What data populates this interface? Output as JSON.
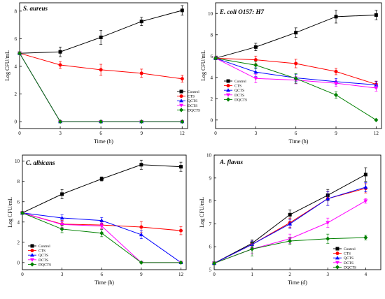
{
  "figure": {
    "caption": ""
  },
  "chart_data": [
    {
      "id": "s_aureus",
      "type": "line",
      "title": "S. aureus",
      "xlabel": "Time (h)",
      "ylabel": "Log CFU/mL",
      "x": [
        0,
        3,
        6,
        9,
        12
      ],
      "xlim": [
        0,
        12.4
      ],
      "ylim": [
        -0.5,
        8.6
      ],
      "xticks": [
        0,
        3,
        6,
        9,
        12
      ],
      "yticks": [
        0,
        2,
        4,
        6,
        8
      ],
      "grid": false,
      "legend_position": "right",
      "series": [
        {
          "name": "Control",
          "color": "#000000",
          "marker": "square",
          "values": [
            4.95,
            5.05,
            6.1,
            7.25,
            8.05
          ],
          "errors": [
            0.0,
            0.35,
            0.5,
            0.3,
            0.35
          ]
        },
        {
          "name": "CTS",
          "color": "#ff0000",
          "marker": "circle",
          "values": [
            4.95,
            4.1,
            3.75,
            3.5,
            3.1
          ],
          "errors": [
            0.0,
            0.25,
            0.4,
            0.3,
            0.25
          ]
        },
        {
          "name": "QCTS",
          "color": "#0000ff",
          "marker": "triangle-up",
          "values": [
            4.95,
            0,
            0,
            0,
            0
          ],
          "errors": [
            0,
            0,
            0,
            0,
            0
          ]
        },
        {
          "name": "DCTS",
          "color": "#ff00ff",
          "marker": "triangle-down",
          "values": [
            4.95,
            0,
            0,
            0,
            0
          ],
          "errors": [
            0,
            0,
            0,
            0,
            0
          ]
        },
        {
          "name": "DQCTS",
          "color": "#008000",
          "marker": "diamond",
          "values": [
            4.95,
            0,
            0,
            0,
            0
          ],
          "errors": [
            0,
            0,
            0,
            0,
            0
          ]
        }
      ]
    },
    {
      "id": "e_coli",
      "type": "line",
      "title": "E. coli O157: H7",
      "xlabel": "Time (h)",
      "ylabel": "Log CFU/mL",
      "x": [
        0,
        3,
        6,
        9,
        12
      ],
      "xlim": [
        0,
        12.4
      ],
      "ylim": [
        -0.8,
        11.0
      ],
      "xticks": [
        0,
        3,
        6,
        9,
        12
      ],
      "yticks": [
        0,
        2,
        4,
        6,
        8,
        10
      ],
      "grid": false,
      "legend_position": "bottom-left",
      "series": [
        {
          "name": "Control",
          "color": "#000000",
          "marker": "square",
          "values": [
            5.8,
            6.85,
            8.2,
            9.7,
            9.85
          ],
          "errors": [
            0.0,
            0.35,
            0.45,
            0.6,
            0.45
          ]
        },
        {
          "name": "CTS",
          "color": "#ff0000",
          "marker": "circle",
          "values": [
            5.8,
            5.65,
            5.3,
            4.55,
            3.35
          ],
          "errors": [
            0.0,
            0.35,
            0.4,
            0.3,
            0.3
          ]
        },
        {
          "name": "QCTS",
          "color": "#0000ff",
          "marker": "triangle-up",
          "values": [
            5.8,
            4.5,
            3.95,
            3.6,
            3.3
          ],
          "errors": [
            0.0,
            0.4,
            0.35,
            0.3,
            0.3
          ]
        },
        {
          "name": "DCTS",
          "color": "#ff00ff",
          "marker": "triangle-down",
          "values": [
            5.8,
            3.9,
            3.75,
            3.45,
            3.0
          ],
          "errors": [
            0.0,
            0.4,
            0.35,
            0.3,
            0.3
          ]
        },
        {
          "name": "DQCTS",
          "color": "#008000",
          "marker": "diamond",
          "values": [
            5.8,
            5.15,
            3.9,
            2.35,
            0.0
          ],
          "errors": [
            0.0,
            0.35,
            0.45,
            0.3,
            0.0
          ]
        }
      ]
    },
    {
      "id": "c_albicans",
      "type": "line",
      "title": "C. albicans",
      "xlabel": "Time (h)",
      "ylabel": "Log CFU/mL",
      "x": [
        0,
        3,
        6,
        9,
        12
      ],
      "xlim": [
        0,
        12.4
      ],
      "ylim": [
        -0.7,
        10.6
      ],
      "xticks": [
        0,
        3,
        6,
        9,
        12
      ],
      "yticks": [
        0,
        2,
        4,
        6,
        8,
        10
      ],
      "grid": false,
      "legend_position": "bottom-left",
      "series": [
        {
          "name": "Control",
          "color": "#000000",
          "marker": "square",
          "values": [
            4.9,
            6.75,
            8.25,
            9.65,
            9.45
          ],
          "errors": [
            0.0,
            0.45,
            0.2,
            0.45,
            0.45
          ]
        },
        {
          "name": "CTS",
          "color": "#ff0000",
          "marker": "circle",
          "values": [
            4.9,
            3.8,
            3.7,
            3.5,
            3.15
          ],
          "errors": [
            0.0,
            0.35,
            0.3,
            0.55,
            0.4
          ]
        },
        {
          "name": "QCTS",
          "color": "#0000ff",
          "marker": "triangle-up",
          "values": [
            4.9,
            4.4,
            4.15,
            2.75,
            0.0
          ],
          "errors": [
            0.0,
            0.3,
            0.3,
            0.4,
            0.0
          ]
        },
        {
          "name": "DCTS",
          "color": "#ff00ff",
          "marker": "triangle-down",
          "values": [
            4.9,
            3.75,
            3.6,
            0.0,
            0.0
          ],
          "errors": [
            0.0,
            0.3,
            0.3,
            0.0,
            0.0
          ]
        },
        {
          "name": "DQCTS",
          "color": "#008000",
          "marker": "diamond",
          "values": [
            4.9,
            3.3,
            2.9,
            0.0,
            0.0
          ],
          "errors": [
            0.0,
            0.35,
            0.35,
            0.0,
            0.0
          ]
        }
      ]
    },
    {
      "id": "a_flavus",
      "type": "line",
      "title": "A. flavus",
      "xlabel": "Time (d)",
      "ylabel": "Log CFU/mL",
      "x": [
        0,
        1,
        2,
        3,
        4
      ],
      "xlim": [
        0,
        4.4
      ],
      "ylim": [
        5,
        10
      ],
      "xticks": [
        0,
        1,
        2,
        3,
        4
      ],
      "yticks": [
        5,
        6,
        7,
        8,
        9,
        10
      ],
      "grid": false,
      "legend_position": "bottom-right",
      "series": [
        {
          "name": "Control",
          "color": "#000000",
          "marker": "square",
          "values": [
            5.28,
            6.15,
            7.4,
            8.25,
            9.15
          ],
          "errors": [
            0.0,
            0.15,
            0.2,
            0.25,
            0.3
          ]
        },
        {
          "name": "CTS",
          "color": "#ff0000",
          "marker": "circle",
          "values": [
            5.28,
            6.1,
            7.05,
            8.1,
            8.55
          ],
          "errors": [
            0.0,
            0.15,
            0.2,
            0.3,
            0.2
          ]
        },
        {
          "name": "QCTS",
          "color": "#0000ff",
          "marker": "triangle-up",
          "values": [
            5.28,
            6.1,
            7.0,
            8.1,
            8.6
          ],
          "errors": [
            0.0,
            0.15,
            0.2,
            0.3,
            0.2
          ]
        },
        {
          "name": "DCTS",
          "color": "#ff00ff",
          "marker": "triangle-down",
          "values": [
            5.28,
            5.9,
            6.35,
            7.05,
            8.0
          ],
          "errors": [
            0.0,
            0.2,
            0.2,
            0.2,
            0.1
          ]
        },
        {
          "name": "DQCTS",
          "color": "#008000",
          "marker": "diamond",
          "values": [
            5.28,
            5.9,
            6.25,
            6.35,
            6.4
          ],
          "errors": [
            0.0,
            0.3,
            0.15,
            0.2,
            0.1
          ]
        }
      ]
    }
  ]
}
